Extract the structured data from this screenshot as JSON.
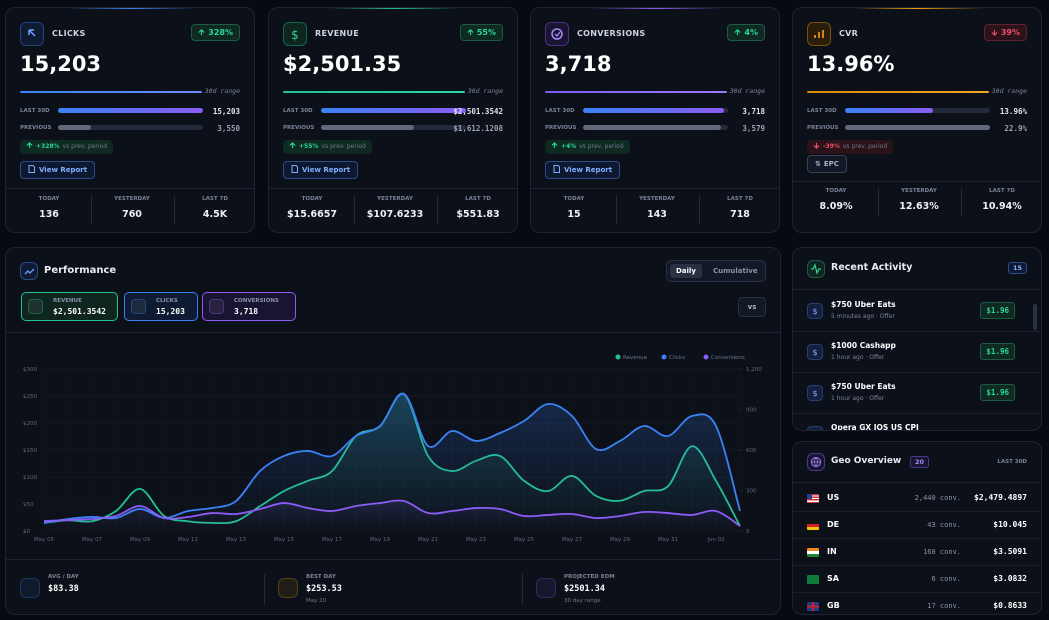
{
  "cards": [
    {
      "title": "CLICKS",
      "change": "328%",
      "value": "15,203",
      "range": "30d range",
      "rows": [
        {
          "label": "LAST 30D",
          "value": "15,203"
        },
        {
          "label": "PREVIOUS",
          "value": "3,550"
        }
      ],
      "delta": "+328%",
      "delta_note": "vs prev. period",
      "button": "View Report",
      "stats": [
        {
          "label": "TODAY",
          "value": "136"
        },
        {
          "label": "YESTERDAY",
          "value": "760"
        },
        {
          "label": "LAST 7D",
          "value": "4.5K"
        }
      ]
    },
    {
      "title": "REVENUE",
      "change": "55%",
      "value": "$2,501.35",
      "range": "30d range",
      "rows": [
        {
          "label": "LAST 30D",
          "value": "$2,501.3542"
        },
        {
          "label": "PREVIOUS",
          "value": "$1,612.1208"
        }
      ],
      "delta": "+55%",
      "delta_note": "vs prev. period",
      "button": "View Report",
      "stats": [
        {
          "label": "TODAY",
          "value": "$15.6657"
        },
        {
          "label": "YESTERDAY",
          "value": "$107.6233"
        },
        {
          "label": "LAST 7D",
          "value": "$551.83"
        }
      ]
    },
    {
      "title": "CONVERSIONS",
      "change": "4%",
      "value": "3,718",
      "range": "30d range",
      "rows": [
        {
          "label": "LAST 30D",
          "value": "3,718"
        },
        {
          "label": "PREVIOUS",
          "value": "3,579"
        }
      ],
      "delta": "+4%",
      "delta_note": "vs prev. period",
      "button": "View Report",
      "stats": [
        {
          "label": "TODAY",
          "value": "15"
        },
        {
          "label": "YESTERDAY",
          "value": "143"
        },
        {
          "label": "LAST 7D",
          "value": "718"
        }
      ]
    },
    {
      "title": "CVR",
      "change": "39%",
      "value": "13.96%",
      "range": "30d range",
      "rows": [
        {
          "label": "LAST 30D",
          "value": "13.96%"
        },
        {
          "label": "PREVIOUS",
          "value": "22.9%"
        }
      ],
      "delta": "-39%",
      "delta_note": "vs prev. period",
      "button": "EPC",
      "stats": [
        {
          "label": "TODAY",
          "value": "8.09%"
        },
        {
          "label": "YESTERDAY",
          "value": "12.63%"
        },
        {
          "label": "LAST 7D",
          "value": "10.94%"
        }
      ]
    }
  ],
  "performance": {
    "title": "Performance",
    "modes": [
      "Daily",
      "Cumulative"
    ],
    "metrics": [
      {
        "label": "REVENUE",
        "value": "$2,501.3542"
      },
      {
        "label": "CLICKS",
        "value": "15,203"
      },
      {
        "label": "CONVERSIONS",
        "value": "3,718"
      }
    ],
    "compare": "vs",
    "summary": [
      {
        "label": "AVG / DAY",
        "value": "$83.38"
      },
      {
        "label": "BEST DAY",
        "value": "$253.53",
        "note": "May 20"
      },
      {
        "label": "PROJECTED EOM",
        "value": "$2501.34",
        "note": "30 day range"
      }
    ]
  },
  "chart_data": {
    "type": "line",
    "grid": true,
    "categories": [
      "May 05",
      null,
      "May 07",
      null,
      "May 09",
      null,
      "May 11",
      null,
      "May 13",
      null,
      "May 15",
      null,
      "May 17",
      null,
      "May 19",
      null,
      "May 21",
      null,
      "May 23",
      null,
      "May 25",
      null,
      "May 27",
      null,
      "May 29",
      null,
      "May 31",
      null,
      "Jun 02",
      null
    ],
    "series": [
      {
        "name": "Revenue",
        "color": "#22c38e",
        "axis": "y",
        "values": [
          15,
          20,
          18,
          37,
          78,
          28,
          18,
          15,
          18,
          46,
          74,
          93,
          111,
          176,
          194,
          253.53,
          139,
          111,
          130,
          139,
          93,
          74,
          102,
          65,
          56,
          74,
          83,
          157,
          93,
          9
        ]
      },
      {
        "name": "Clicks",
        "color": "#3b82f6",
        "axis": "y2",
        "values": [
          59,
          89,
          104,
          96,
          163,
          96,
          148,
          170,
          222,
          444,
          556,
          593,
          556,
          704,
          778,
          1015,
          630,
          741,
          667,
          726,
          815,
          941,
          852,
          607,
          667,
          778,
          704,
          852,
          778,
          148
        ]
      },
      {
        "name": "Conversions",
        "color": "#8b5cf6",
        "axis": "y2",
        "values": [
          74,
          81,
          89,
          111,
          185,
          96,
          104,
          133,
          126,
          163,
          207,
          170,
          148,
          185,
          207,
          222,
          133,
          148,
          170,
          163,
          111,
          119,
          126,
          96,
          111,
          141,
          133,
          119,
          148,
          37
        ]
      }
    ],
    "ylim": [
      0,
      300
    ],
    "yticks": [
      {
        "value": 0,
        "label": "$0"
      },
      {
        "value": 50,
        "label": "$50"
      },
      {
        "value": 100,
        "label": "$100"
      },
      {
        "value": 150,
        "label": "$150"
      },
      {
        "value": 200,
        "label": "$200"
      },
      {
        "value": 250,
        "label": "$250"
      },
      {
        "value": 300,
        "label": "$300"
      }
    ],
    "y2lim": [
      0,
      1200
    ],
    "y2ticks": [
      0,
      300,
      600,
      900,
      {
        "value": 1200,
        "label": "1,200"
      }
    ]
  },
  "activity": {
    "title": "Recent Activity",
    "count": "15",
    "items": [
      {
        "title": "$750 Uber Eats",
        "meta": "5 minutes ago · Offer",
        "amount": "$1.96"
      },
      {
        "title": "$1000 Cashapp",
        "meta": "1 hour ago · Offer",
        "amount": "$1.96"
      },
      {
        "title": "$750 Uber Eats",
        "meta": "1 hour ago · Offer",
        "amount": "$1.96"
      },
      {
        "title": "Opera GX IOS US CPI"
      }
    ]
  },
  "geo": {
    "title": "Geo Overview",
    "count": "20",
    "period": "LAST 30D",
    "rows": [
      {
        "code": "US",
        "conversions": "2,440 conv.",
        "revenue": "$2,479.4897"
      },
      {
        "code": "DE",
        "conversions": "43 conv.",
        "revenue": "$10.045"
      },
      {
        "code": "IN",
        "conversions": "160 conv.",
        "revenue": "$3.5091"
      },
      {
        "code": "SA",
        "conversions": "6 conv.",
        "revenue": "$3.0832"
      },
      {
        "code": "GB",
        "conversions": "17 conv.",
        "revenue": "$0.8633"
      }
    ]
  }
}
